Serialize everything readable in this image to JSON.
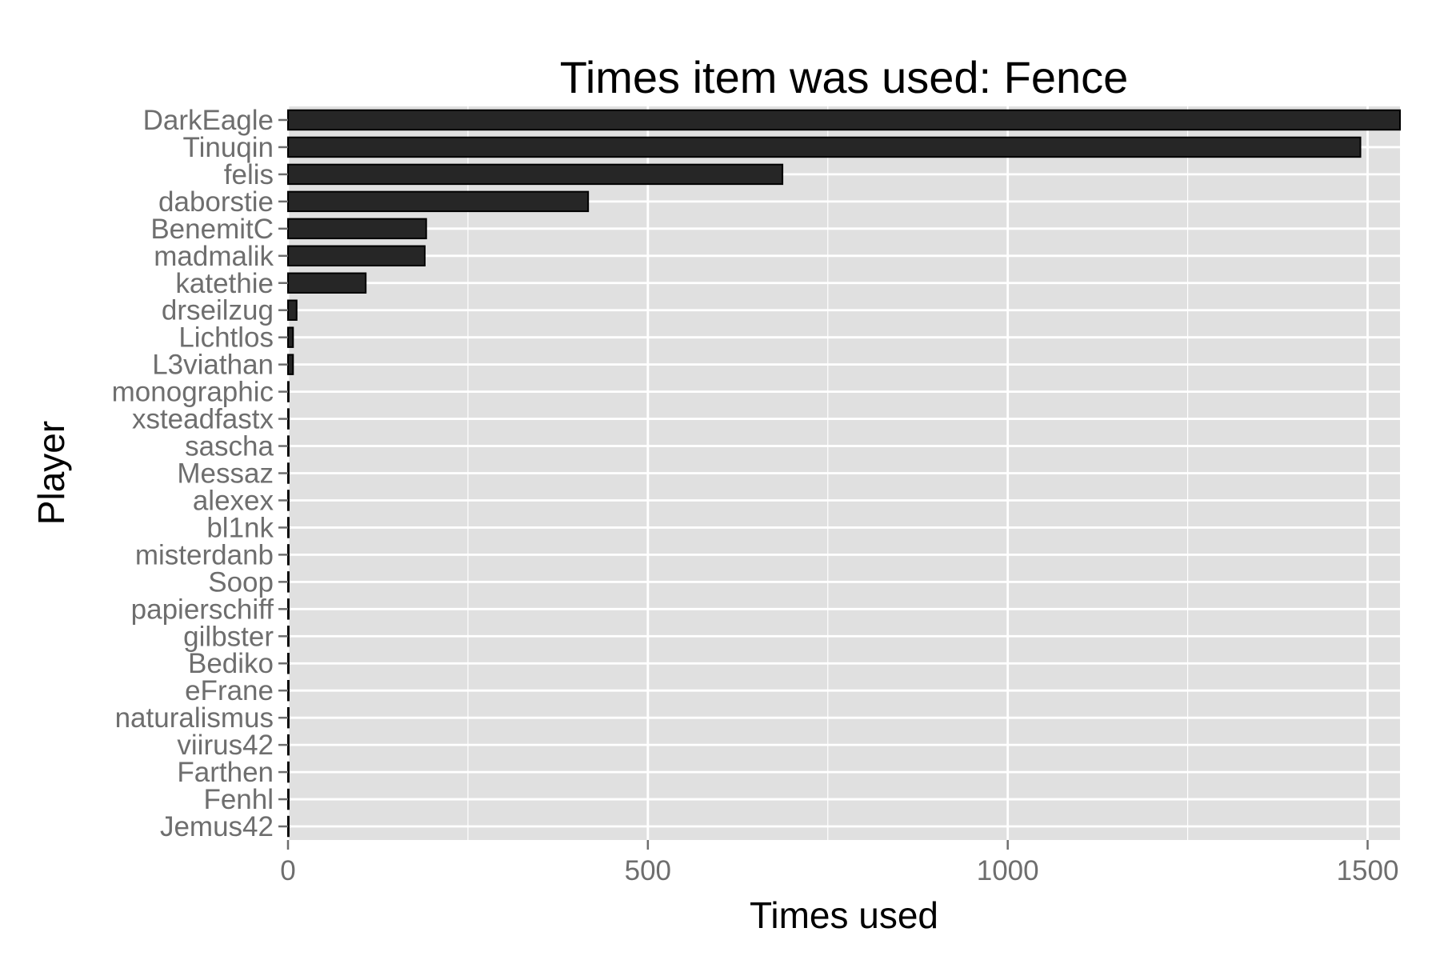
{
  "chart_data": {
    "type": "bar",
    "orientation": "horizontal",
    "title": "Times item was used: Fence",
    "xlabel": "Times used",
    "ylabel": "Player",
    "xlim": [
      0,
      1545
    ],
    "xticks": [
      0,
      500,
      1000,
      1500
    ],
    "grid": true,
    "legend": "none",
    "categories": [
      "DarkEagle",
      "Tinuqin",
      "felis",
      "daborstie",
      "BenemitC",
      "madmalik",
      "katethie",
      "drseilzug",
      "Lichtlos",
      "L3viathan",
      "monographic",
      "xsteadfastx",
      "sascha",
      "Messaz",
      "alexex",
      "bl1nk",
      "misterdanb",
      "Soop",
      "papierschiff",
      "gilbster",
      "Bediko",
      "eFrane",
      "naturalismus",
      "viirus42",
      "Farthen",
      "Fenhl",
      "Jemus42"
    ],
    "values": [
      1545,
      1490,
      687,
      417,
      192,
      190,
      108,
      12,
      7,
      7,
      1,
      1,
      1,
      1,
      1,
      1,
      1,
      1,
      1,
      1,
      1,
      1,
      1,
      1,
      1,
      1,
      1
    ],
    "colors": {
      "bar_fill": "#262626",
      "bar_stroke": "#000000",
      "panel_bg": "#e0e0e0",
      "grid": "#ffffff",
      "tick": "#6e6e6e"
    }
  }
}
